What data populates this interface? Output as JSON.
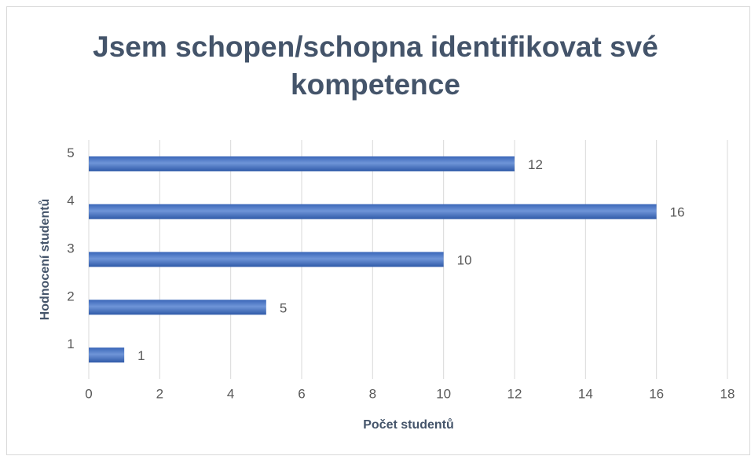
{
  "chart_data": {
    "type": "hbar",
    "title": "Jsem schopen/schopna identifikovat své kompetence",
    "x_label": "Počet studentů",
    "y_label": "Hodnocení studentů",
    "categories": [
      "1",
      "2",
      "3",
      "4",
      "5"
    ],
    "values": [
      1,
      5,
      10,
      16,
      12
    ],
    "color": "#4472c4",
    "xlim": [
      0,
      18
    ],
    "xticks": [
      0,
      2,
      4,
      6,
      8,
      10,
      12,
      14,
      16,
      18
    ],
    "grid": true
  }
}
